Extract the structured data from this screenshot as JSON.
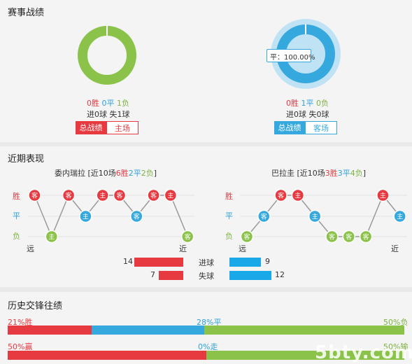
{
  "colors": {
    "win": "#e63940",
    "draw": "#35a8dd",
    "loss": "#8bc34a",
    "grey": "#c8c8c8"
  },
  "record": {
    "title": "赛事战绩",
    "left": {
      "stats": {
        "w": "0胜",
        "d": "0平",
        "l": "1负"
      },
      "goals": "进0球 失1球",
      "tabs": [
        "总战绩",
        "主场"
      ]
    },
    "right": {
      "tooltip": "平：100.00%",
      "stats": {
        "w": "0胜",
        "d": "1平",
        "l": "0负"
      },
      "goals": "进0球 失0球",
      "tabs": [
        "总战绩",
        "客场"
      ]
    }
  },
  "recent": {
    "title": "近期表现",
    "labels": {
      "win": "胜",
      "draw": "平",
      "loss": "负",
      "far": "远",
      "near": "近"
    },
    "home": {
      "team": "委内瑞拉",
      "summary": {
        "open": " [近10场",
        "w": "6胜",
        "d": "2平",
        "l": "2负",
        "close": "]"
      },
      "sequence": [
        {
          "r": "W",
          "t": "客"
        },
        {
          "r": "L",
          "t": "主"
        },
        {
          "r": "W",
          "t": "客"
        },
        {
          "r": "D",
          "t": "主"
        },
        {
          "r": "W",
          "t": "主"
        },
        {
          "r": "W",
          "t": "客"
        },
        {
          "r": "D",
          "t": "客"
        },
        {
          "r": "W",
          "t": "客"
        },
        {
          "r": "W",
          "t": "主"
        },
        {
          "r": "L",
          "t": "客"
        }
      ]
    },
    "away": {
      "team": "巴拉圭",
      "summary": {
        "open": " [近10场",
        "w": "3胜",
        "d": "3平",
        "l": "4负",
        "close": "]"
      },
      "sequence": [
        {
          "r": "L",
          "t": "客"
        },
        {
          "r": "D",
          "t": "客"
        },
        {
          "r": "W",
          "t": "客"
        },
        {
          "r": "W",
          "t": "主"
        },
        {
          "r": "D",
          "t": "主"
        },
        {
          "r": "L",
          "t": "客"
        },
        {
          "r": "L",
          "t": "客"
        },
        {
          "r": "L",
          "t": "客"
        },
        {
          "r": "W",
          "t": "主"
        },
        {
          "r": "D",
          "t": "主"
        }
      ]
    },
    "compare": [
      {
        "label": "进球",
        "home": 14,
        "away": 9
      },
      {
        "label": "失球",
        "home": 7,
        "away": 12
      }
    ]
  },
  "h2h": {
    "title": "历史交锋往绩",
    "row1": {
      "left": "21%胜",
      "mid": "28%平",
      "right": "50%负",
      "parts": [
        21,
        28,
        50
      ]
    },
    "row2": {
      "left": "50%赢",
      "mid": "0%走",
      "right": "50%输",
      "parts": [
        50,
        0,
        50
      ]
    }
  },
  "watermark": "5bty.com"
}
